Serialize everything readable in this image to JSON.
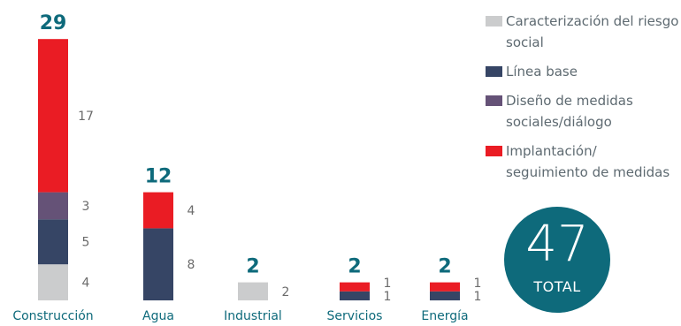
{
  "chart_data": {
    "type": "bar",
    "stacked": true,
    "categories": [
      "Construcción",
      "Agua",
      "Industrial",
      "Servicios",
      "Energía"
    ],
    "totals": [
      29,
      12,
      2,
      2,
      2
    ],
    "series": [
      {
        "name": "Caracterización del riesgo social",
        "color": "#cbcccd",
        "values": [
          4,
          0,
          2,
          0,
          0
        ]
      },
      {
        "name": "Línea base",
        "color": "#364565",
        "values": [
          5,
          8,
          0,
          1,
          1
        ]
      },
      {
        "name": "Diseño de medidas sociales/diálogo",
        "color": "#655277",
        "values": [
          3,
          0,
          0,
          0,
          0
        ]
      },
      {
        "name": "Implantación/ seguimiento de medidas",
        "color": "#ea1c24",
        "values": [
          17,
          4,
          0,
          1,
          1
        ]
      }
    ],
    "legend_position": "right",
    "grid": false,
    "total": {
      "value": "47",
      "label": "TOTAL"
    },
    "colors": {
      "category_label": "#0e6a7b",
      "total_label": "#0e6a7b",
      "value_label": "#6b6b6b",
      "badge": "#0e6a7b"
    }
  }
}
